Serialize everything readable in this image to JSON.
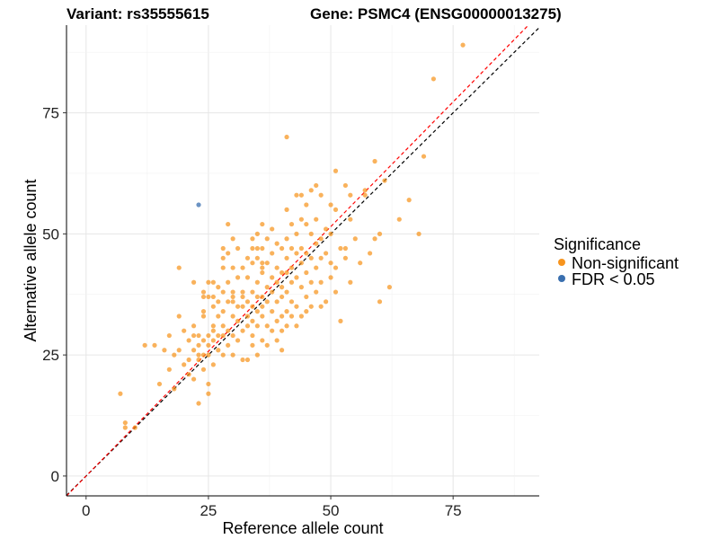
{
  "chart_data": {
    "type": "scatter",
    "title_left": "Variant: rs35555615",
    "title_right": "Gene: PSMC4 (ENSG00000013275)",
    "xlabel": "Reference allele count",
    "ylabel": "Alternative allele count",
    "xlim": [
      -4,
      92.6
    ],
    "ylim": [
      -4.1,
      93.1
    ],
    "xticks": [
      0,
      25,
      50,
      75
    ],
    "yticks": [
      0,
      25,
      50,
      75
    ],
    "grid": true,
    "legend": {
      "title": "Significance",
      "placement": "right",
      "entries": [
        {
          "label": "Non-significant",
          "color": "#F7941D"
        },
        {
          "label": "FDR < 0.05",
          "color": "#3A6FAF"
        }
      ]
    },
    "reference_lines": [
      {
        "name": "identity",
        "slope": 1.0,
        "intercept": 0,
        "color": "#000000",
        "style": "dashed"
      },
      {
        "name": "fit",
        "slope": 1.03,
        "intercept": 0,
        "color": "#FF0000",
        "style": "dashed"
      }
    ],
    "series": [
      {
        "name": "Non-significant",
        "color": "#F7941D",
        "points": [
          [
            7,
            17
          ],
          [
            8,
            11
          ],
          [
            8,
            10
          ],
          [
            10,
            10
          ],
          [
            12,
            27
          ],
          [
            14,
            27
          ],
          [
            15,
            19
          ],
          [
            16,
            26
          ],
          [
            17,
            22
          ],
          [
            17,
            29
          ],
          [
            18,
            25
          ],
          [
            18,
            18
          ],
          [
            19,
            33
          ],
          [
            19,
            26
          ],
          [
            19,
            43
          ],
          [
            20,
            30
          ],
          [
            20,
            23
          ],
          [
            21,
            21
          ],
          [
            21,
            24
          ],
          [
            21,
            28
          ],
          [
            22,
            29
          ],
          [
            22,
            26
          ],
          [
            22,
            31
          ],
          [
            22,
            20
          ],
          [
            22,
            40
          ],
          [
            23,
            29
          ],
          [
            23,
            27
          ],
          [
            23,
            25
          ],
          [
            23,
            24
          ],
          [
            23,
            15
          ],
          [
            24,
            28
          ],
          [
            24,
            25
          ],
          [
            24,
            22
          ],
          [
            24,
            34
          ],
          [
            24,
            38
          ],
          [
            24,
            33
          ],
          [
            24,
            37
          ],
          [
            25,
            40
          ],
          [
            25,
            29
          ],
          [
            25,
            27
          ],
          [
            25,
            25
          ],
          [
            25,
            19
          ],
          [
            25,
            17
          ],
          [
            25,
            37
          ],
          [
            26,
            35
          ],
          [
            26,
            31
          ],
          [
            26,
            28
          ],
          [
            26,
            30
          ],
          [
            26,
            23
          ],
          [
            26,
            37
          ],
          [
            26,
            40
          ],
          [
            27,
            33
          ],
          [
            27,
            29
          ],
          [
            27,
            36
          ],
          [
            27,
            26
          ],
          [
            27,
            39
          ],
          [
            28,
            34
          ],
          [
            28,
            29
          ],
          [
            28,
            31
          ],
          [
            28,
            25
          ],
          [
            28,
            38
          ],
          [
            28,
            43
          ],
          [
            28,
            47
          ],
          [
            28,
            45
          ],
          [
            29,
            52
          ],
          [
            29,
            40
          ],
          [
            29,
            36
          ],
          [
            29,
            30
          ],
          [
            29,
            27
          ],
          [
            29,
            46
          ],
          [
            30,
            49
          ],
          [
            30,
            43
          ],
          [
            30,
            38
          ],
          [
            30,
            37
          ],
          [
            30,
            36
          ],
          [
            30,
            33
          ],
          [
            30,
            29
          ],
          [
            30,
            25
          ],
          [
            31,
            47
          ],
          [
            31,
            35
          ],
          [
            31,
            41
          ],
          [
            31,
            32
          ],
          [
            31,
            28
          ],
          [
            32,
            43
          ],
          [
            32,
            38
          ],
          [
            32,
            37
          ],
          [
            32,
            35
          ],
          [
            32,
            24
          ],
          [
            32,
            30
          ],
          [
            33,
            41
          ],
          [
            33,
            36
          ],
          [
            33,
            33
          ],
          [
            33,
            31
          ],
          [
            33,
            24
          ],
          [
            33,
            45
          ],
          [
            34,
            49
          ],
          [
            34,
            47
          ],
          [
            34,
            44
          ],
          [
            34,
            38
          ],
          [
            34,
            35
          ],
          [
            34,
            32
          ],
          [
            34,
            29
          ],
          [
            34,
            27
          ],
          [
            35,
            50
          ],
          [
            35,
            47
          ],
          [
            35,
            45
          ],
          [
            35,
            40
          ],
          [
            35,
            37
          ],
          [
            35,
            34
          ],
          [
            35,
            31
          ],
          [
            35,
            25
          ],
          [
            36,
            52
          ],
          [
            36,
            47
          ],
          [
            36,
            44
          ],
          [
            36,
            43
          ],
          [
            36,
            42
          ],
          [
            36,
            37
          ],
          [
            36,
            35
          ],
          [
            36,
            33
          ],
          [
            36,
            28
          ],
          [
            37,
            49
          ],
          [
            37,
            44
          ],
          [
            37,
            39
          ],
          [
            37,
            36
          ],
          [
            37,
            31
          ],
          [
            37,
            27
          ],
          [
            38,
            51
          ],
          [
            38,
            46
          ],
          [
            38,
            41
          ],
          [
            38,
            38
          ],
          [
            38,
            34
          ],
          [
            38,
            30
          ],
          [
            39,
            48
          ],
          [
            39,
            43
          ],
          [
            39,
            40
          ],
          [
            39,
            36
          ],
          [
            39,
            32
          ],
          [
            39,
            28
          ],
          [
            40,
            47
          ],
          [
            40,
            42
          ],
          [
            40,
            39
          ],
          [
            40,
            37
          ],
          [
            40,
            33
          ],
          [
            40,
            30
          ],
          [
            40,
            26
          ],
          [
            41,
            70
          ],
          [
            41,
            55
          ],
          [
            41,
            49
          ],
          [
            41,
            45
          ],
          [
            41,
            42
          ],
          [
            41,
            38
          ],
          [
            41,
            34
          ],
          [
            41,
            31
          ],
          [
            42,
            52
          ],
          [
            42,
            47
          ],
          [
            42,
            43
          ],
          [
            42,
            40
          ],
          [
            42,
            36
          ],
          [
            42,
            33
          ],
          [
            43,
            58
          ],
          [
            43,
            50
          ],
          [
            43,
            46
          ],
          [
            43,
            41
          ],
          [
            43,
            35
          ],
          [
            43,
            31
          ],
          [
            44,
            58
          ],
          [
            44,
            53
          ],
          [
            44,
            47
          ],
          [
            44,
            44
          ],
          [
            44,
            39
          ],
          [
            44,
            33
          ],
          [
            45,
            56
          ],
          [
            45,
            52
          ],
          [
            45,
            46
          ],
          [
            45,
            42
          ],
          [
            45,
            37
          ],
          [
            45,
            34
          ],
          [
            46,
            59
          ],
          [
            46,
            50
          ],
          [
            46,
            45
          ],
          [
            46,
            40
          ],
          [
            46,
            35
          ],
          [
            47,
            60
          ],
          [
            47,
            53
          ],
          [
            47,
            48
          ],
          [
            47,
            43
          ],
          [
            47,
            38
          ],
          [
            48,
            58
          ],
          [
            48,
            49
          ],
          [
            48,
            45
          ],
          [
            48,
            40
          ],
          [
            48,
            35
          ],
          [
            49,
            51
          ],
          [
            49,
            46
          ],
          [
            49,
            36
          ],
          [
            50,
            56
          ],
          [
            50,
            50
          ],
          [
            50,
            44
          ],
          [
            50,
            41
          ],
          [
            51,
            63
          ],
          [
            51,
            55
          ],
          [
            51,
            43
          ],
          [
            51,
            38
          ],
          [
            52,
            32
          ],
          [
            52,
            47
          ],
          [
            53,
            60
          ],
          [
            53,
            47
          ],
          [
            53,
            45
          ],
          [
            54,
            58
          ],
          [
            54,
            53
          ],
          [
            54,
            40
          ],
          [
            55,
            49
          ],
          [
            56,
            44
          ],
          [
            57,
            59
          ],
          [
            57,
            58
          ],
          [
            58,
            46
          ],
          [
            59,
            65
          ],
          [
            59,
            49
          ],
          [
            60,
            50
          ],
          [
            60,
            36
          ],
          [
            61,
            61
          ],
          [
            62,
            39
          ],
          [
            64,
            53
          ],
          [
            66,
            57
          ],
          [
            68,
            50
          ],
          [
            69,
            66
          ],
          [
            71,
            82
          ],
          [
            77,
            89
          ]
        ]
      },
      {
        "name": "FDR < 0.05",
        "color": "#3A6FAF",
        "points": [
          [
            23,
            56
          ]
        ]
      }
    ]
  }
}
